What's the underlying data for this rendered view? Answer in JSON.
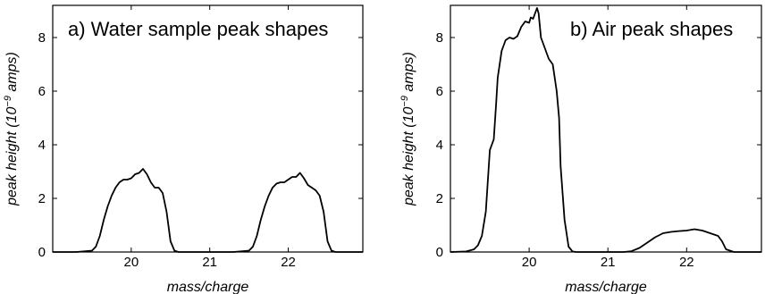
{
  "chart_data": [
    {
      "type": "line",
      "title": "a) Water sample peak shapes",
      "xlabel": "mass/charge",
      "ylabel": "peak height (10",
      "ylabel_exp": "−9",
      "ylabel_tail": " amps)",
      "xlim": [
        19.0,
        22.95
      ],
      "ylim": [
        0,
        9.2
      ],
      "xticks": [
        20,
        21,
        22
      ],
      "xtick_labels": [
        "20",
        "21",
        "22"
      ],
      "yticks": [
        0,
        2,
        4,
        6,
        8
      ],
      "ytick_labels": [
        "0",
        "2",
        "4",
        "6",
        "8"
      ],
      "grid": false,
      "series": [
        {
          "x": [
            19.0,
            19.3,
            19.5,
            19.55,
            19.6,
            19.65,
            19.7,
            19.75,
            19.8,
            19.85,
            19.9,
            19.95,
            20.0,
            20.05,
            20.1,
            20.15,
            20.2,
            20.25,
            20.3,
            20.35,
            20.4,
            20.45,
            20.5,
            20.55,
            20.6,
            21.3,
            21.5,
            21.55,
            21.6,
            21.65,
            21.7,
            21.75,
            21.8,
            21.85,
            21.9,
            21.95,
            22.0,
            22.05,
            22.1,
            22.15,
            22.2,
            22.25,
            22.3,
            22.35,
            22.4,
            22.45,
            22.5,
            22.55,
            22.6,
            22.95
          ],
          "y": [
            0,
            0,
            0.05,
            0.2,
            0.6,
            1.2,
            1.7,
            2.1,
            2.4,
            2.6,
            2.7,
            2.7,
            2.75,
            2.9,
            2.95,
            3.1,
            2.9,
            2.6,
            2.4,
            2.4,
            2.2,
            1.5,
            0.4,
            0.05,
            0,
            0,
            0.05,
            0.2,
            0.6,
            1.2,
            1.7,
            2.1,
            2.4,
            2.55,
            2.6,
            2.6,
            2.7,
            2.8,
            2.8,
            2.95,
            2.75,
            2.5,
            2.4,
            2.3,
            2.1,
            1.5,
            0.4,
            0.05,
            0,
            0
          ]
        }
      ]
    },
    {
      "type": "line",
      "title": "b) Air peak shapes",
      "xlabel": "mass/charge",
      "ylabel": "peak height (10",
      "ylabel_exp": "−9",
      "ylabel_tail": " amps)",
      "xlim": [
        19.0,
        22.95
      ],
      "ylim": [
        0,
        9.2
      ],
      "xticks": [
        20,
        21,
        22
      ],
      "xtick_labels": [
        "20",
        "21",
        "22"
      ],
      "yticks": [
        0,
        2,
        4,
        6,
        8
      ],
      "ytick_labels": [
        "0",
        "2",
        "4",
        "6",
        "8"
      ],
      "grid": false,
      "series": [
        {
          "x": [
            19.0,
            19.2,
            19.3,
            19.35,
            19.4,
            19.45,
            19.5,
            19.55,
            19.58,
            19.6,
            19.65,
            19.7,
            19.75,
            19.8,
            19.85,
            19.9,
            19.95,
            20.0,
            20.02,
            20.05,
            20.1,
            20.12,
            20.15,
            20.2,
            20.25,
            20.3,
            20.35,
            20.38,
            20.4,
            20.45,
            20.5,
            20.55,
            20.6,
            21.2,
            21.3,
            21.4,
            21.5,
            21.6,
            21.7,
            21.8,
            21.9,
            22.0,
            22.1,
            22.2,
            22.3,
            22.4,
            22.45,
            22.5,
            22.6,
            22.95
          ],
          "y": [
            0,
            0.02,
            0.1,
            0.25,
            0.6,
            1.5,
            3.8,
            4.2,
            5.5,
            6.5,
            7.5,
            7.9,
            8.0,
            7.95,
            8.05,
            8.4,
            8.6,
            8.55,
            8.75,
            8.7,
            9.1,
            8.9,
            8.0,
            7.6,
            7.2,
            7.0,
            6.0,
            5.0,
            3.2,
            1.2,
            0.2,
            0.02,
            0,
            0,
            0.03,
            0.15,
            0.35,
            0.55,
            0.7,
            0.75,
            0.78,
            0.8,
            0.85,
            0.8,
            0.7,
            0.6,
            0.4,
            0.1,
            0,
            0
          ]
        }
      ]
    }
  ]
}
